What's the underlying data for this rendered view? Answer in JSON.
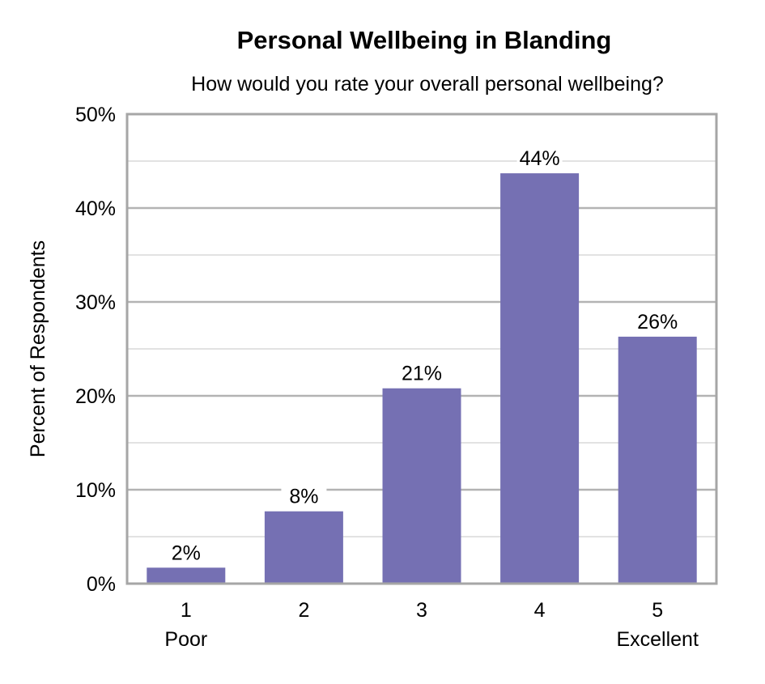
{
  "chart_data": {
    "type": "bar",
    "title": "Personal Wellbeing in Blanding",
    "subtitle": "How would you rate your overall personal wellbeing?",
    "xlabel": "",
    "ylabel": "Percent of Respondents",
    "categories": [
      "1",
      "2",
      "3",
      "4",
      "5"
    ],
    "category_sublabels": [
      "Poor",
      "",
      "",
      "",
      "Excellent"
    ],
    "values": [
      1.7,
      7.7,
      20.8,
      43.7,
      26.3
    ],
    "data_labels": [
      "2%",
      "8%",
      "21%",
      "44%",
      "26%"
    ],
    "ylim": [
      0,
      50
    ],
    "yticks": [
      "0%",
      "10%",
      "20%",
      "30%",
      "40%",
      "50%"
    ],
    "grid": true,
    "legend": "none",
    "colors": {
      "bar": "#7570b3",
      "major_grid": "#b3b3b3",
      "minor_grid": "#d9d9d9",
      "frame": "#a6a6a6"
    }
  }
}
